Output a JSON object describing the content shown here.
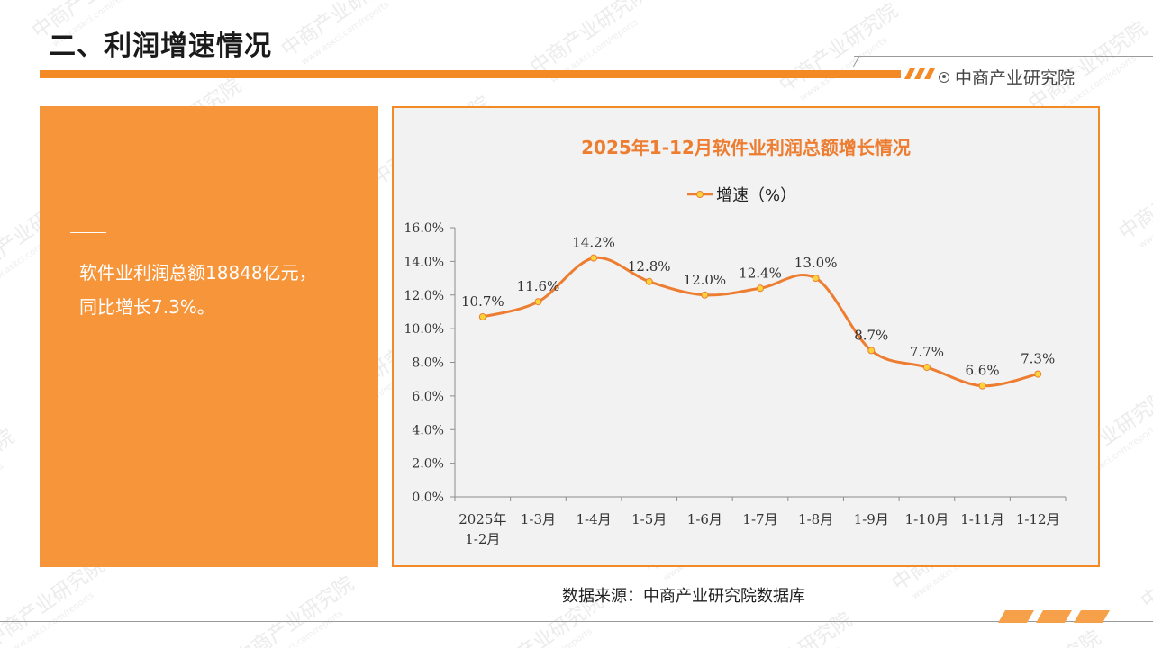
{
  "header": {
    "title": "二、利润增速情况",
    "logo": "中商产业研究院",
    "logo_icon": "target-icon"
  },
  "summary": {
    "text": "软件业利润总额18848亿元，同比增长7.3%。"
  },
  "source": "数据来源：中商产业研究院数据库",
  "colors": {
    "accent": "#f38a26",
    "panel": "#f7953b",
    "line": "#ed7d31",
    "marker": "#ffd43b"
  },
  "chart_data": {
    "type": "line",
    "title": "2025年1-12月软件业利润总额增长情况",
    "categories": [
      "2025年\n1-2月",
      "1-3月",
      "1-4月",
      "1-5月",
      "1-6月",
      "1-7月",
      "1-8月",
      "1-9月",
      "1-10月",
      "1-11月",
      "1-12月"
    ],
    "series": [
      {
        "name": "增速（%）",
        "values": [
          10.7,
          11.6,
          14.2,
          12.8,
          12.0,
          12.4,
          13.0,
          8.7,
          7.7,
          6.6,
          7.3
        ]
      }
    ],
    "data_labels": [
      "10.7%",
      "11.6%",
      "14.2%",
      "12.8%",
      "12.0%",
      "12.4%",
      "13.0%",
      "8.7%",
      "7.7%",
      "6.6%",
      "7.3%"
    ],
    "y_ticks": [
      "0.0%",
      "2.0%",
      "4.0%",
      "6.0%",
      "8.0%",
      "10.0%",
      "12.0%",
      "14.0%",
      "16.0%"
    ],
    "ylim": [
      0,
      16
    ],
    "legend": "top-center",
    "grid": false,
    "smooth": true
  }
}
